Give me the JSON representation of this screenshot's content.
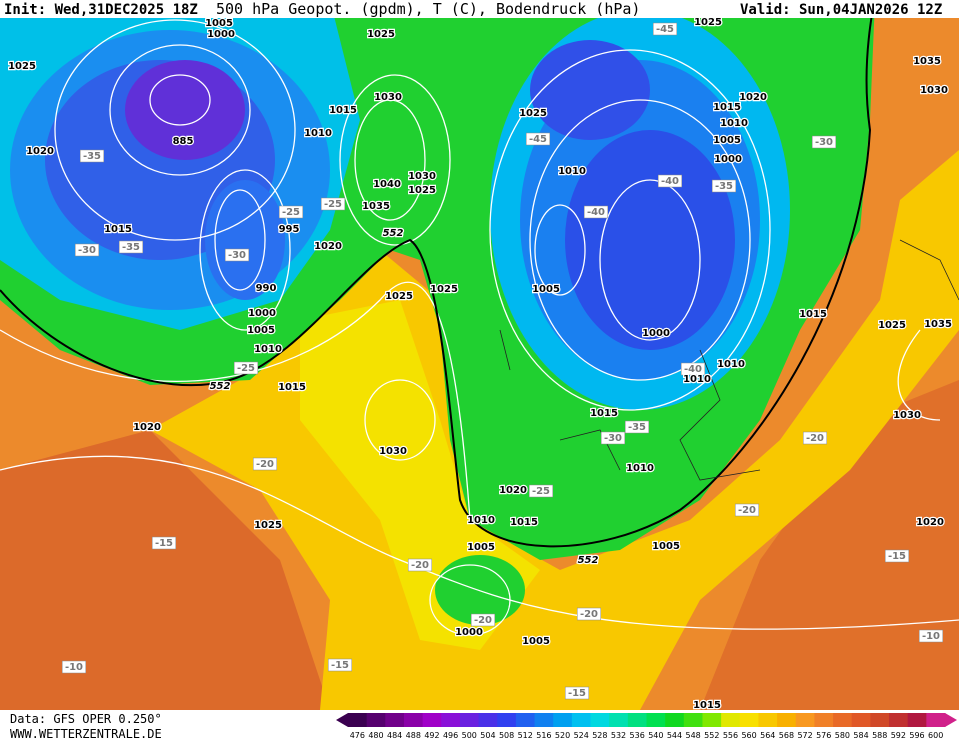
{
  "header": {
    "init": "Init: Wed,31DEC2025 18Z",
    "title": "500 hPa Geopot. (gpdm), T (C), Bodendruck (hPa)",
    "valid": "Valid: Sun,04JAN2026 12Z"
  },
  "footer": {
    "data_source": "Data: GFS OPER 0.250°",
    "website": "WWW.WETTERZENTRALE.DE"
  },
  "colorbar": {
    "labels": [
      "476",
      "480",
      "484",
      "488",
      "492",
      "496",
      "500",
      "504",
      "508",
      "512",
      "516",
      "520",
      "524",
      "528",
      "532",
      "536",
      "540",
      "544",
      "548",
      "552",
      "556",
      "560",
      "564",
      "568",
      "572",
      "576",
      "580",
      "584",
      "588",
      "592",
      "596",
      "600"
    ],
    "colors": [
      "#3a0050",
      "#55006e",
      "#70008a",
      "#8a00a8",
      "#a000c8",
      "#8a10d8",
      "#6a20e0",
      "#4a30e8",
      "#3040f0",
      "#2060f0",
      "#1080f0",
      "#00a0f0",
      "#00c0f0",
      "#00d8e0",
      "#00e0b0",
      "#00e080",
      "#00e050",
      "#10d820",
      "#40e010",
      "#80e800",
      "#e0e800",
      "#f8e000",
      "#f8c800",
      "#f8b000",
      "#f89820",
      "#f08028",
      "#e86a28",
      "#e05828",
      "#d04828",
      "#c03030",
      "#b01840",
      "#d0208a"
    ]
  },
  "map_labels": [
    "1005",
    "1000",
    "1025",
    "1025",
    "-45",
    "1025",
    "1035",
    "1030",
    "1015",
    "1030",
    "1025",
    "1015",
    "1020",
    "1010",
    "885",
    "-45",
    "1010",
    "1005",
    "-30",
    "1020",
    "-35",
    "1000",
    "1030",
    "1040",
    "1025",
    "1010",
    "-40",
    "-35",
    "1035",
    "-25",
    "-25",
    "-40",
    "995",
    "1015",
    "552",
    "1020",
    "-30",
    "-35",
    "-30",
    "990",
    "1025",
    "1025",
    "1005",
    "1000",
    "1015",
    "1025",
    "1035",
    "1005",
    "1000",
    "1010",
    "-25",
    "1010",
    "-40",
    "1010",
    "552",
    "1015",
    "1030",
    "1015",
    "-35",
    "-30",
    "1020",
    "-20",
    "1030",
    "1010",
    "-20",
    "1020",
    "-25",
    "-20",
    "1010",
    "1015",
    "1025",
    "1020",
    "-15",
    "1005",
    "1005",
    "552",
    "-20",
    "-15",
    "-20",
    "-20",
    "1000",
    "1005",
    "-10",
    "-15",
    "-10",
    "-15",
    "1015"
  ]
}
